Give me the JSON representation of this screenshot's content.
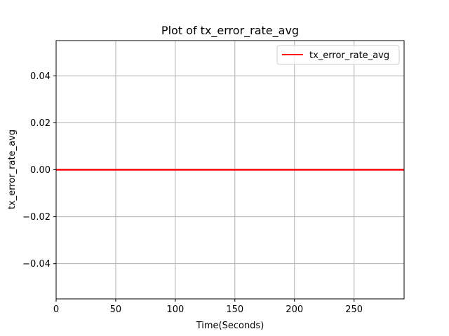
{
  "chart_data": {
    "type": "line",
    "title": "Plot of tx_error_rate_avg",
    "xlabel": "Time(Seconds)",
    "ylabel": "tx_error_rate_avg",
    "xlim": [
      0,
      292
    ],
    "ylim": [
      -0.055,
      0.055
    ],
    "x_ticks": [
      0,
      50,
      100,
      150,
      200,
      250
    ],
    "x_tick_labels": [
      "0",
      "50",
      "100",
      "150",
      "200",
      "250"
    ],
    "y_ticks": [
      -0.04,
      -0.02,
      0.0,
      0.02,
      0.04
    ],
    "y_tick_labels": [
      "−0.04",
      "−0.02",
      "0.00",
      "0.02",
      "0.04"
    ],
    "grid": true,
    "legend_position": "top-right",
    "series": [
      {
        "name": "tx_error_rate_avg",
        "color": "#ff0000",
        "x": [
          0,
          50,
          100,
          150,
          200,
          250,
          292
        ],
        "y": [
          0,
          0,
          0,
          0,
          0,
          0,
          0
        ]
      }
    ]
  }
}
